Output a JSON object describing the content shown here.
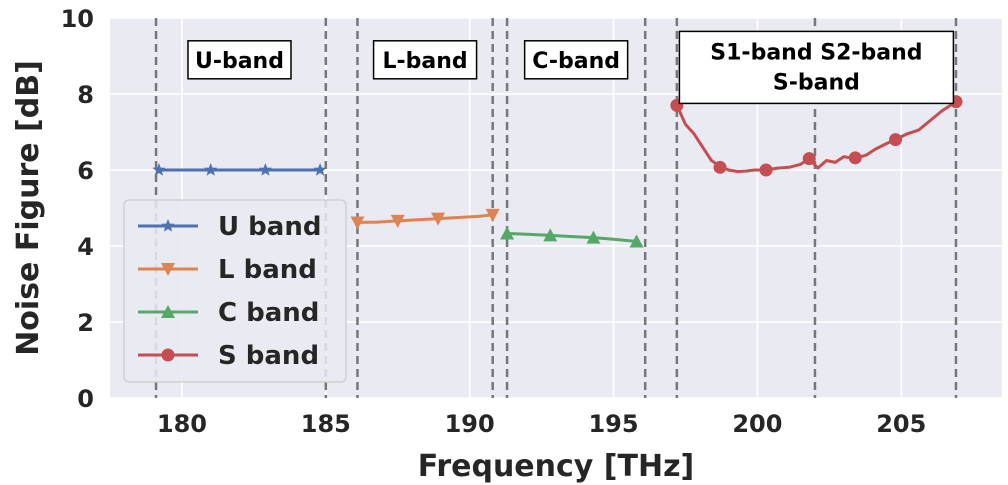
{
  "chart_data": {
    "type": "line",
    "xlabel": "Frequency [THz]",
    "ylabel": "Noise Figure [dB]",
    "xlim": [
      177.5,
      208.5
    ],
    "ylim": [
      0,
      10
    ],
    "xticks": [
      180,
      185,
      190,
      195,
      200,
      205
    ],
    "yticks": [
      0,
      2,
      4,
      6,
      8,
      10
    ],
    "grid": true,
    "legend_position": "lower-left",
    "band_boundaries": [
      179.1,
      185.0,
      186.1,
      190.8,
      191.3,
      196.1,
      197.2,
      202.0,
      206.9
    ],
    "band_annotations": [
      {
        "text": "U-band",
        "x": 182.0,
        "y": 8.9
      },
      {
        "text": "L-band",
        "x": 188.45,
        "y": 8.9
      },
      {
        "text": "C-band",
        "x": 193.7,
        "y": 8.9
      }
    ],
    "s_band_annotation": {
      "lines": [
        "S1-band   S2-band",
        "S-band"
      ],
      "x": 202.05,
      "y": 8.7
    },
    "series": [
      {
        "name": "U band",
        "color": "#4c72b0",
        "marker": "star",
        "x": [
          179.2,
          179.6,
          180.1,
          180.6,
          181.0,
          181.5,
          182.0,
          182.5,
          182.9,
          183.4,
          183.9,
          184.4,
          184.9
        ],
        "y": [
          6.0,
          6.0,
          6.0,
          6.0,
          6.0,
          6.0,
          6.0,
          6.0,
          6.0,
          6.0,
          6.0,
          6.0,
          6.0
        ],
        "marker_x": [
          179.2,
          181.0,
          182.9,
          184.8
        ],
        "marker_y": [
          6.0,
          6.0,
          6.0,
          6.0
        ]
      },
      {
        "name": "L band",
        "color": "#dd8452",
        "marker": "triangle-down",
        "x": [
          186.1,
          186.8,
          187.5,
          188.2,
          188.9,
          189.6,
          190.3,
          190.8
        ],
        "y": [
          4.62,
          4.63,
          4.66,
          4.69,
          4.72,
          4.75,
          4.78,
          4.82
        ],
        "marker_x": [
          186.1,
          187.5,
          188.9,
          190.8
        ],
        "marker_y": [
          4.62,
          4.66,
          4.72,
          4.82
        ]
      },
      {
        "name": "C band",
        "color": "#55a868",
        "marker": "triangle-up",
        "x": [
          191.3,
          192.0,
          192.8,
          193.5,
          194.3,
          195.0,
          195.8
        ],
        "y": [
          4.33,
          4.31,
          4.28,
          4.25,
          4.22,
          4.18,
          4.12
        ],
        "marker_x": [
          191.3,
          192.8,
          194.3,
          195.8
        ],
        "marker_y": [
          4.33,
          4.28,
          4.22,
          4.12
        ]
      },
      {
        "name": "S band",
        "color": "#c44e52",
        "marker": "circle",
        "x": [
          197.2,
          197.5,
          197.8,
          198.1,
          198.4,
          198.7,
          199.0,
          199.3,
          199.6,
          199.9,
          200.3,
          200.7,
          201.1,
          201.5,
          201.8,
          202.1,
          202.4,
          202.7,
          203.0,
          203.4,
          203.8,
          204.1,
          204.5,
          204.8,
          205.2,
          205.6,
          206.0,
          206.4,
          206.9
        ],
        "y": [
          7.7,
          7.2,
          6.95,
          6.6,
          6.25,
          6.1,
          6.0,
          5.96,
          5.97,
          6.0,
          6.0,
          6.05,
          6.07,
          6.15,
          6.3,
          6.05,
          6.25,
          6.2,
          6.35,
          6.3,
          6.4,
          6.55,
          6.7,
          6.8,
          6.95,
          7.05,
          7.3,
          7.55,
          7.8
        ],
        "marker_x": [
          197.2,
          198.7,
          200.3,
          201.8,
          203.4,
          204.8,
          206.9
        ],
        "marker_y": [
          7.7,
          6.07,
          6.0,
          6.3,
          6.32,
          6.8,
          7.8
        ]
      }
    ]
  }
}
